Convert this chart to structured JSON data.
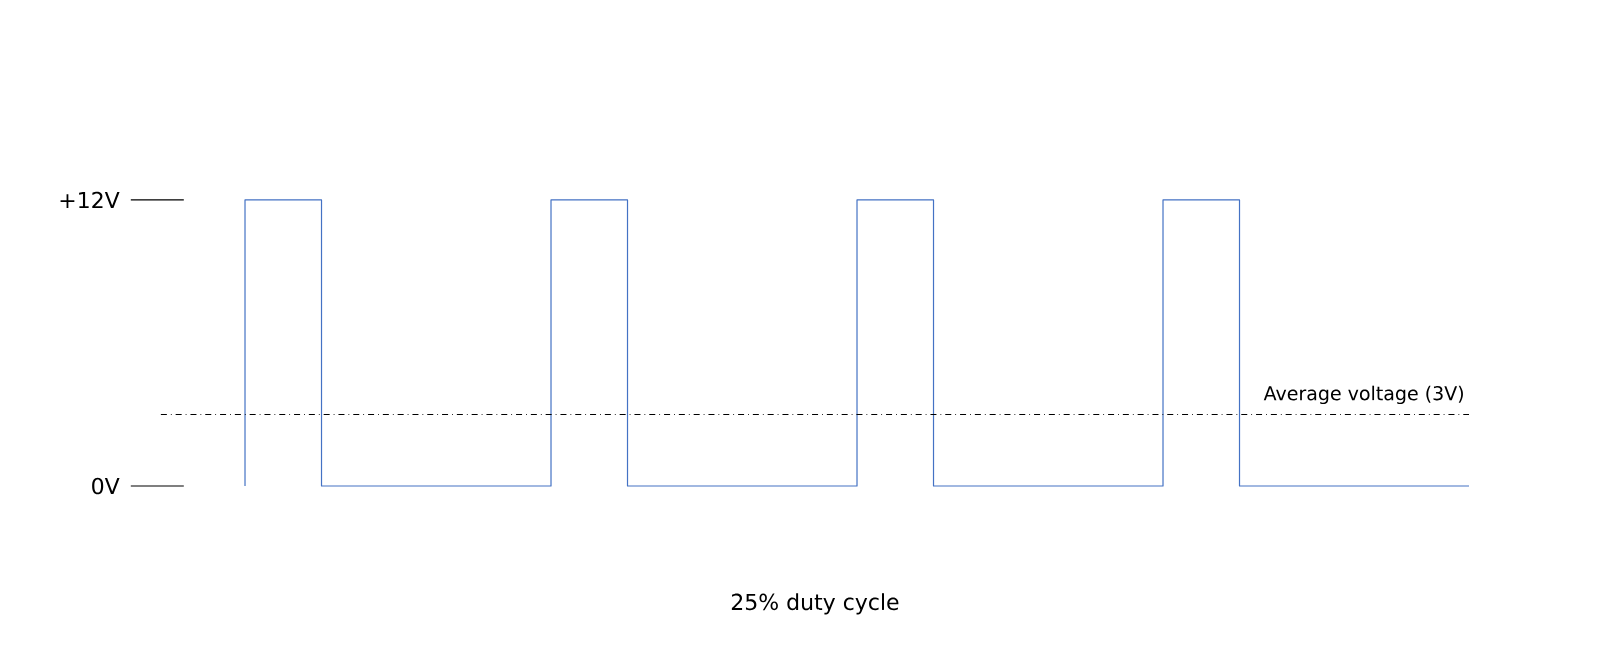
{
  "chart_data": {
    "type": "step",
    "xlabel": "25% duty cycle",
    "categories": [
      null,
      null,
      null,
      null,
      null,
      null,
      null,
      null,
      null,
      null,
      null,
      null,
      null,
      null,
      null,
      null,
      null
    ],
    "series": [
      {
        "color": "#4472c4",
        "values": [
          0,
          12,
          0,
          0,
          0,
          12,
          0,
          0,
          0,
          12,
          0,
          0,
          0,
          12,
          0,
          0,
          0
        ]
      }
    ],
    "ylim": [
      0,
      12
    ],
    "yticks": [
      {
        "value": 0,
        "label": "0V"
      },
      {
        "value": 12,
        "label": "+12V"
      }
    ],
    "ref_lines": [
      {
        "axis": "y",
        "value": 3,
        "label": "Average voltage (3V)",
        "line_style": "dashdot",
        "color": "#000000"
      }
    ]
  }
}
